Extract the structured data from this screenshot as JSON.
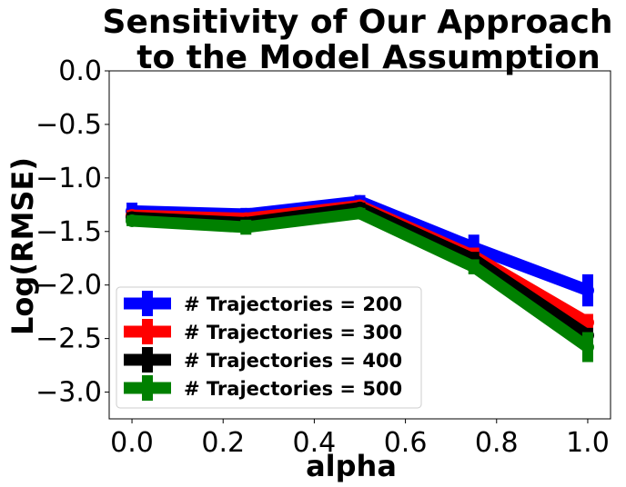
{
  "chart_data": {
    "type": "line",
    "title_lines": [
      "Sensitivity of Our Approach",
      "to the Model Assumption"
    ],
    "xlabel": "alpha",
    "ylabel": "Log(RMSE)",
    "xlim": [
      -0.05,
      1.05
    ],
    "ylim": [
      -3.25,
      0.0
    ],
    "xticks": [
      0.0,
      0.2,
      0.4,
      0.6,
      0.8,
      1.0
    ],
    "xtick_labels": [
      "0.0",
      "0.2",
      "0.4",
      "0.6",
      "0.8",
      "1.0"
    ],
    "yticks": [
      0.0,
      -0.5,
      -1.0,
      -1.5,
      -2.0,
      -2.5,
      -3.0
    ],
    "ytick_labels": [
      "0.0",
      "−0.5",
      "−1.0",
      "−1.5",
      "−2.0",
      "−2.5",
      "−3.0"
    ],
    "x": [
      0.0,
      0.25,
      0.5,
      0.75,
      1.0
    ],
    "legend_position": "lower-left",
    "series": [
      {
        "name": "# Trajectories = 200",
        "color": "#0000ff",
        "values": [
          -1.31,
          -1.34,
          -1.22,
          -1.65,
          -2.05
        ],
        "errors": [
          0.08,
          0.06,
          0.06,
          0.12,
          0.15
        ]
      },
      {
        "name": "# Trajectories = 300",
        "color": "#ff0000",
        "values": [
          -1.35,
          -1.38,
          -1.26,
          -1.73,
          -2.35
        ],
        "errors": [
          0.05,
          0.05,
          0.05,
          0.08,
          0.08
        ]
      },
      {
        "name": "# Trajectories = 400",
        "color": "#000000",
        "values": [
          -1.37,
          -1.42,
          -1.28,
          -1.76,
          -2.47
        ],
        "errors": [
          0.05,
          0.05,
          0.05,
          0.07,
          0.07
        ]
      },
      {
        "name": "# Trajectories = 500",
        "color": "#008000",
        "values": [
          -1.4,
          -1.46,
          -1.33,
          -1.83,
          -2.58
        ],
        "errors": [
          0.05,
          0.07,
          0.05,
          0.07,
          0.14
        ]
      }
    ]
  }
}
